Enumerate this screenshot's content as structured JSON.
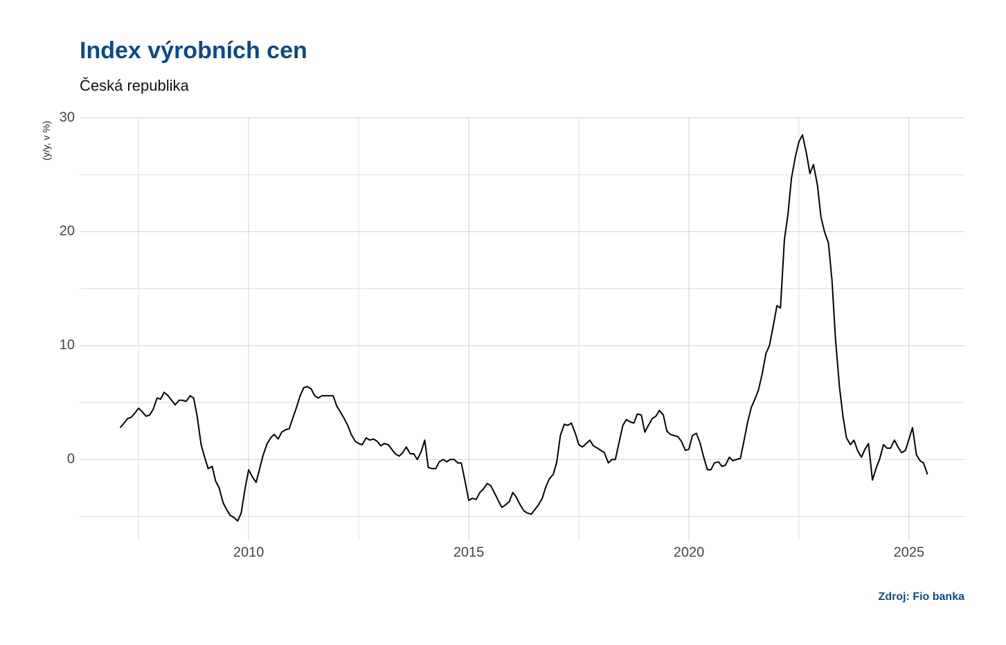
{
  "chart_data": {
    "type": "line",
    "title": "Index výrobních cen",
    "subtitle": "Česká republika",
    "y_label": "(y/y, v %)",
    "source": "Zdroj: Fio banka",
    "xlim": [
      2006.16,
      2026.26
    ],
    "ylim": [
      -7.1,
      30
    ],
    "xticks": [
      2010,
      2015,
      2020,
      2025
    ],
    "yticks": [
      0,
      10,
      20,
      30
    ],
    "x_minor_grid": [
      2007.5,
      2012.5,
      2017.5,
      2022.5
    ],
    "y_minor_grid": [
      -5,
      5,
      15,
      25
    ],
    "grid": true,
    "series": [
      {
        "name": "Index výrobních cen",
        "color": "#000000",
        "x": [
          2007.08,
          2007.17,
          2007.25,
          2007.33,
          2007.42,
          2007.5,
          2007.58,
          2007.67,
          2007.75,
          2007.83,
          2007.92,
          2008.0,
          2008.08,
          2008.17,
          2008.25,
          2008.33,
          2008.42,
          2008.5,
          2008.58,
          2008.67,
          2008.75,
          2008.83,
          2008.92,
          2009.0,
          2009.08,
          2009.17,
          2009.25,
          2009.33,
          2009.42,
          2009.5,
          2009.58,
          2009.67,
          2009.75,
          2009.83,
          2009.92,
          2010.0,
          2010.08,
          2010.17,
          2010.25,
          2010.33,
          2010.42,
          2010.5,
          2010.58,
          2010.67,
          2010.75,
          2010.83,
          2010.92,
          2011.0,
          2011.08,
          2011.17,
          2011.25,
          2011.33,
          2011.42,
          2011.5,
          2011.58,
          2011.67,
          2011.75,
          2011.83,
          2011.92,
          2012.0,
          2012.08,
          2012.17,
          2012.25,
          2012.33,
          2012.42,
          2012.5,
          2012.58,
          2012.67,
          2012.75,
          2012.83,
          2012.92,
          2013.0,
          2013.08,
          2013.17,
          2013.25,
          2013.33,
          2013.42,
          2013.5,
          2013.58,
          2013.67,
          2013.75,
          2013.83,
          2013.92,
          2014.0,
          2014.08,
          2014.17,
          2014.25,
          2014.33,
          2014.42,
          2014.5,
          2014.58,
          2014.67,
          2014.75,
          2014.83,
          2014.92,
          2015.0,
          2015.08,
          2015.17,
          2015.25,
          2015.33,
          2015.42,
          2015.5,
          2015.58,
          2015.67,
          2015.75,
          2015.83,
          2015.92,
          2016.0,
          2016.08,
          2016.17,
          2016.25,
          2016.33,
          2016.42,
          2016.5,
          2016.58,
          2016.67,
          2016.75,
          2016.83,
          2016.92,
          2017.0,
          2017.08,
          2017.17,
          2017.25,
          2017.33,
          2017.42,
          2017.5,
          2017.58,
          2017.67,
          2017.75,
          2017.83,
          2017.92,
          2018.0,
          2018.08,
          2018.17,
          2018.25,
          2018.33,
          2018.42,
          2018.5,
          2018.58,
          2018.67,
          2018.75,
          2018.83,
          2018.92,
          2019.0,
          2019.08,
          2019.17,
          2019.25,
          2019.33,
          2019.42,
          2019.5,
          2019.58,
          2019.67,
          2019.75,
          2019.83,
          2019.92,
          2020.0,
          2020.08,
          2020.17,
          2020.25,
          2020.33,
          2020.42,
          2020.5,
          2020.58,
          2020.67,
          2020.75,
          2020.83,
          2020.92,
          2021.0,
          2021.08,
          2021.17,
          2021.25,
          2021.33,
          2021.42,
          2021.5,
          2021.58,
          2021.67,
          2021.75,
          2021.83,
          2021.92,
          2022.0,
          2022.08,
          2022.17,
          2022.25,
          2022.33,
          2022.42,
          2022.5,
          2022.58,
          2022.67,
          2022.75,
          2022.83,
          2022.92,
          2023.0,
          2023.08,
          2023.17,
          2023.25,
          2023.33,
          2023.42,
          2023.5,
          2023.58,
          2023.67,
          2023.75,
          2023.83,
          2023.92,
          2024.0,
          2024.08,
          2024.17,
          2024.25,
          2024.33,
          2024.42,
          2024.5,
          2024.58,
          2024.67,
          2024.75,
          2024.83,
          2024.92,
          2025.0,
          2025.08,
          2025.17,
          2025.25,
          2025.33,
          2025.42
        ],
        "values": [
          2.8,
          3.2,
          3.6,
          3.7,
          4.1,
          4.5,
          4.2,
          3.8,
          3.9,
          4.4,
          5.4,
          5.3,
          5.9,
          5.6,
          5.2,
          4.8,
          5.2,
          5.2,
          5.1,
          5.6,
          5.4,
          3.8,
          1.3,
          0.2,
          -0.8,
          -0.6,
          -1.9,
          -2.5,
          -3.8,
          -4.4,
          -4.9,
          -5.1,
          -5.4,
          -4.7,
          -2.5,
          -0.9,
          -1.5,
          -2.0,
          -0.8,
          0.4,
          1.4,
          1.9,
          2.2,
          1.8,
          2.4,
          2.6,
          2.7,
          3.6,
          4.5,
          5.6,
          6.3,
          6.4,
          6.2,
          5.6,
          5.4,
          5.6,
          5.6,
          5.6,
          5.6,
          4.7,
          4.2,
          3.6,
          3.0,
          2.2,
          1.6,
          1.4,
          1.3,
          1.9,
          1.7,
          1.8,
          1.6,
          1.2,
          1.4,
          1.3,
          0.9,
          0.5,
          0.3,
          0.6,
          1.1,
          0.5,
          0.5,
          0.0,
          0.7,
          1.7,
          -0.7,
          -0.8,
          -0.8,
          -0.2,
          0.0,
          -0.2,
          0.0,
          0.0,
          -0.3,
          -0.3,
          -2.0,
          -3.6,
          -3.4,
          -3.5,
          -2.9,
          -2.6,
          -2.1,
          -2.3,
          -2.9,
          -3.6,
          -4.2,
          -4.0,
          -3.7,
          -2.9,
          -3.3,
          -4.0,
          -4.5,
          -4.7,
          -4.8,
          -4.4,
          -4.0,
          -3.4,
          -2.4,
          -1.7,
          -1.3,
          -0.2,
          2.1,
          3.1,
          3.0,
          3.2,
          2.3,
          1.3,
          1.1,
          1.4,
          1.7,
          1.2,
          1.0,
          0.8,
          0.6,
          -0.3,
          0.0,
          0.0,
          1.6,
          3.0,
          3.5,
          3.3,
          3.2,
          4.0,
          3.9,
          2.4,
          3.0,
          3.6,
          3.8,
          4.3,
          3.9,
          2.5,
          2.2,
          2.1,
          2.0,
          1.6,
          0.8,
          0.9,
          2.1,
          2.3,
          1.5,
          0.3,
          -0.9,
          -0.9,
          -0.3,
          -0.2,
          -0.6,
          -0.5,
          0.2,
          -0.1,
          0.0,
          0.1,
          1.6,
          3.2,
          4.6,
          5.3,
          6.1,
          7.6,
          9.3,
          10.0,
          11.8,
          13.5,
          13.3,
          19.3,
          21.5,
          24.7,
          26.6,
          27.9,
          28.5,
          26.9,
          25.1,
          25.9,
          24.1,
          21.3,
          20.0,
          19.0,
          15.8,
          10.6,
          6.4,
          3.8,
          1.9,
          1.3,
          1.7,
          0.8,
          0.2,
          0.9,
          1.4,
          -1.8,
          -0.8,
          0.0,
          1.3,
          1.0,
          1.0,
          1.7,
          1.1,
          0.6,
          0.8,
          1.8,
          2.8,
          0.4,
          -0.1,
          -0.3,
          -1.3
        ]
      }
    ]
  }
}
